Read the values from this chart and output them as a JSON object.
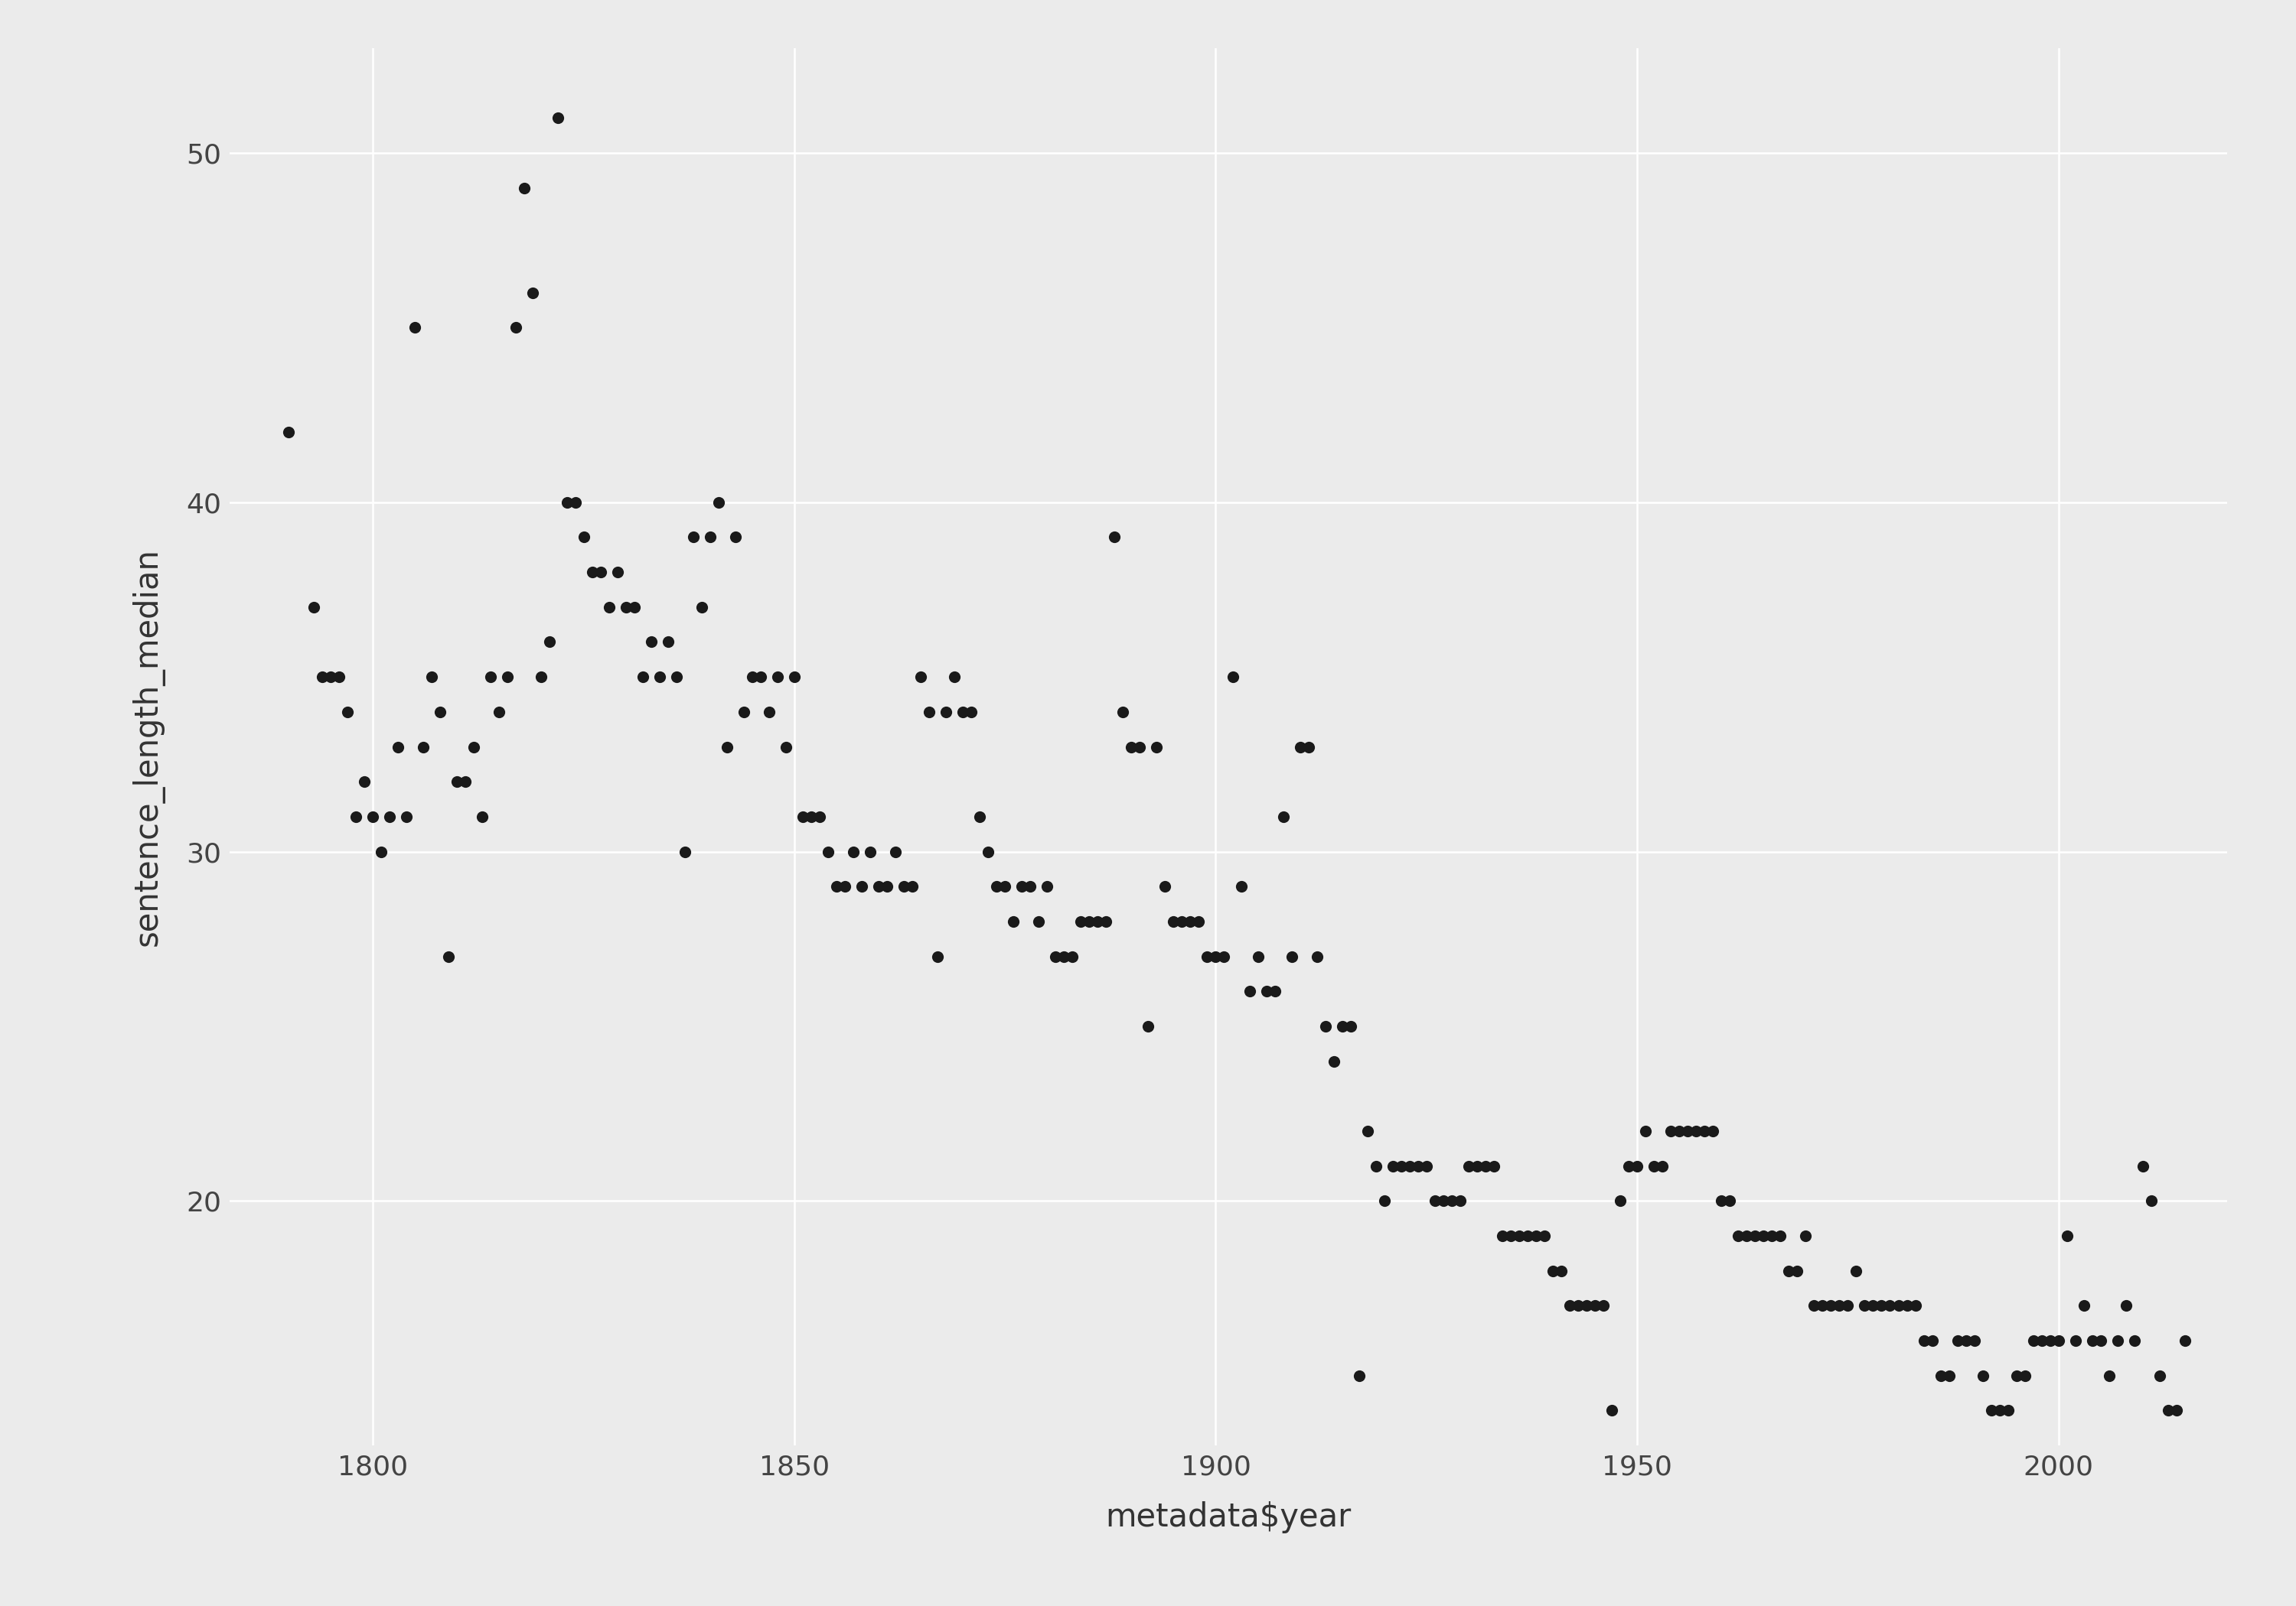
{
  "title": "",
  "xlabel": "metadata$year",
  "ylabel": "sentence_length_median",
  "background_color": "#EBEBEB",
  "grid_color": "#FFFFFF",
  "point_color": "#1a1a1a",
  "point_size": 120,
  "xlim": [
    1783,
    2020
  ],
  "ylim": [
    13,
    53
  ],
  "xticks": [
    1800,
    1850,
    1900,
    1950,
    2000
  ],
  "yticks": [
    20,
    30,
    40,
    50
  ],
  "data": [
    [
      1790,
      42
    ],
    [
      1793,
      37
    ],
    [
      1794,
      35
    ],
    [
      1795,
      35
    ],
    [
      1796,
      35
    ],
    [
      1797,
      34
    ],
    [
      1798,
      31
    ],
    [
      1799,
      32
    ],
    [
      1800,
      31
    ],
    [
      1801,
      30
    ],
    [
      1802,
      31
    ],
    [
      1803,
      33
    ],
    [
      1804,
      31
    ],
    [
      1805,
      45
    ],
    [
      1806,
      33
    ],
    [
      1807,
      35
    ],
    [
      1808,
      34
    ],
    [
      1809,
      27
    ],
    [
      1810,
      32
    ],
    [
      1811,
      32
    ],
    [
      1812,
      33
    ],
    [
      1813,
      31
    ],
    [
      1814,
      35
    ],
    [
      1815,
      34
    ],
    [
      1816,
      35
    ],
    [
      1817,
      45
    ],
    [
      1818,
      49
    ],
    [
      1819,
      46
    ],
    [
      1820,
      35
    ],
    [
      1821,
      36
    ],
    [
      1822,
      51
    ],
    [
      1823,
      40
    ],
    [
      1824,
      40
    ],
    [
      1825,
      39
    ],
    [
      1826,
      38
    ],
    [
      1827,
      38
    ],
    [
      1828,
      37
    ],
    [
      1829,
      38
    ],
    [
      1830,
      37
    ],
    [
      1831,
      37
    ],
    [
      1832,
      35
    ],
    [
      1833,
      36
    ],
    [
      1834,
      35
    ],
    [
      1835,
      36
    ],
    [
      1836,
      35
    ],
    [
      1837,
      30
    ],
    [
      1838,
      39
    ],
    [
      1839,
      37
    ],
    [
      1840,
      39
    ],
    [
      1841,
      40
    ],
    [
      1842,
      33
    ],
    [
      1843,
      39
    ],
    [
      1844,
      34
    ],
    [
      1845,
      35
    ],
    [
      1846,
      35
    ],
    [
      1847,
      34
    ],
    [
      1848,
      35
    ],
    [
      1849,
      33
    ],
    [
      1850,
      35
    ],
    [
      1851,
      31
    ],
    [
      1852,
      31
    ],
    [
      1853,
      31
    ],
    [
      1854,
      30
    ],
    [
      1855,
      29
    ],
    [
      1856,
      29
    ],
    [
      1857,
      30
    ],
    [
      1858,
      29
    ],
    [
      1859,
      30
    ],
    [
      1860,
      29
    ],
    [
      1861,
      29
    ],
    [
      1862,
      30
    ],
    [
      1863,
      29
    ],
    [
      1864,
      29
    ],
    [
      1865,
      35
    ],
    [
      1866,
      34
    ],
    [
      1867,
      27
    ],
    [
      1868,
      34
    ],
    [
      1869,
      35
    ],
    [
      1870,
      34
    ],
    [
      1871,
      34
    ],
    [
      1872,
      31
    ],
    [
      1873,
      30
    ],
    [
      1874,
      29
    ],
    [
      1875,
      29
    ],
    [
      1876,
      28
    ],
    [
      1877,
      29
    ],
    [
      1878,
      29
    ],
    [
      1879,
      28
    ],
    [
      1880,
      29
    ],
    [
      1881,
      27
    ],
    [
      1882,
      27
    ],
    [
      1883,
      27
    ],
    [
      1884,
      28
    ],
    [
      1885,
      28
    ],
    [
      1886,
      28
    ],
    [
      1887,
      28
    ],
    [
      1888,
      39
    ],
    [
      1889,
      34
    ],
    [
      1890,
      33
    ],
    [
      1891,
      33
    ],
    [
      1892,
      25
    ],
    [
      1893,
      33
    ],
    [
      1894,
      29
    ],
    [
      1895,
      28
    ],
    [
      1896,
      28
    ],
    [
      1897,
      28
    ],
    [
      1898,
      28
    ],
    [
      1899,
      27
    ],
    [
      1900,
      27
    ],
    [
      1901,
      27
    ],
    [
      1902,
      35
    ],
    [
      1903,
      29
    ],
    [
      1904,
      26
    ],
    [
      1905,
      27
    ],
    [
      1906,
      26
    ],
    [
      1907,
      26
    ],
    [
      1908,
      31
    ],
    [
      1909,
      27
    ],
    [
      1910,
      33
    ],
    [
      1911,
      33
    ],
    [
      1912,
      27
    ],
    [
      1913,
      25
    ],
    [
      1914,
      24
    ],
    [
      1915,
      25
    ],
    [
      1916,
      25
    ],
    [
      1917,
      15
    ],
    [
      1918,
      22
    ],
    [
      1919,
      21
    ],
    [
      1920,
      20
    ],
    [
      1921,
      21
    ],
    [
      1922,
      21
    ],
    [
      1923,
      21
    ],
    [
      1924,
      21
    ],
    [
      1925,
      21
    ],
    [
      1926,
      20
    ],
    [
      1927,
      20
    ],
    [
      1928,
      20
    ],
    [
      1929,
      20
    ],
    [
      1930,
      21
    ],
    [
      1931,
      21
    ],
    [
      1932,
      21
    ],
    [
      1933,
      21
    ],
    [
      1934,
      19
    ],
    [
      1935,
      19
    ],
    [
      1936,
      19
    ],
    [
      1937,
      19
    ],
    [
      1938,
      19
    ],
    [
      1939,
      19
    ],
    [
      1940,
      18
    ],
    [
      1941,
      18
    ],
    [
      1942,
      17
    ],
    [
      1943,
      17
    ],
    [
      1944,
      17
    ],
    [
      1945,
      17
    ],
    [
      1946,
      17
    ],
    [
      1947,
      14
    ],
    [
      1948,
      20
    ],
    [
      1949,
      21
    ],
    [
      1950,
      21
    ],
    [
      1951,
      22
    ],
    [
      1952,
      21
    ],
    [
      1953,
      21
    ],
    [
      1954,
      22
    ],
    [
      1955,
      22
    ],
    [
      1956,
      22
    ],
    [
      1957,
      22
    ],
    [
      1958,
      22
    ],
    [
      1959,
      22
    ],
    [
      1960,
      20
    ],
    [
      1961,
      20
    ],
    [
      1962,
      19
    ],
    [
      1963,
      19
    ],
    [
      1964,
      19
    ],
    [
      1965,
      19
    ],
    [
      1966,
      19
    ],
    [
      1967,
      19
    ],
    [
      1968,
      18
    ],
    [
      1969,
      18
    ],
    [
      1970,
      19
    ],
    [
      1971,
      17
    ],
    [
      1972,
      17
    ],
    [
      1973,
      17
    ],
    [
      1974,
      17
    ],
    [
      1975,
      17
    ],
    [
      1976,
      18
    ],
    [
      1977,
      17
    ],
    [
      1978,
      17
    ],
    [
      1979,
      17
    ],
    [
      1980,
      17
    ],
    [
      1981,
      17
    ],
    [
      1982,
      17
    ],
    [
      1983,
      17
    ],
    [
      1984,
      16
    ],
    [
      1985,
      16
    ],
    [
      1986,
      15
    ],
    [
      1987,
      15
    ],
    [
      1988,
      16
    ],
    [
      1989,
      16
    ],
    [
      1990,
      16
    ],
    [
      1991,
      15
    ],
    [
      1992,
      14
    ],
    [
      1993,
      14
    ],
    [
      1994,
      14
    ],
    [
      1995,
      15
    ],
    [
      1996,
      15
    ],
    [
      1997,
      16
    ],
    [
      1998,
      16
    ],
    [
      1999,
      16
    ],
    [
      2000,
      16
    ],
    [
      2001,
      19
    ],
    [
      2002,
      16
    ],
    [
      2003,
      17
    ],
    [
      2004,
      16
    ],
    [
      2005,
      16
    ],
    [
      2006,
      15
    ],
    [
      2007,
      16
    ],
    [
      2008,
      17
    ],
    [
      2009,
      16
    ],
    [
      2010,
      21
    ],
    [
      2011,
      20
    ],
    [
      2012,
      15
    ],
    [
      2013,
      14
    ],
    [
      2014,
      14
    ],
    [
      2015,
      16
    ]
  ]
}
